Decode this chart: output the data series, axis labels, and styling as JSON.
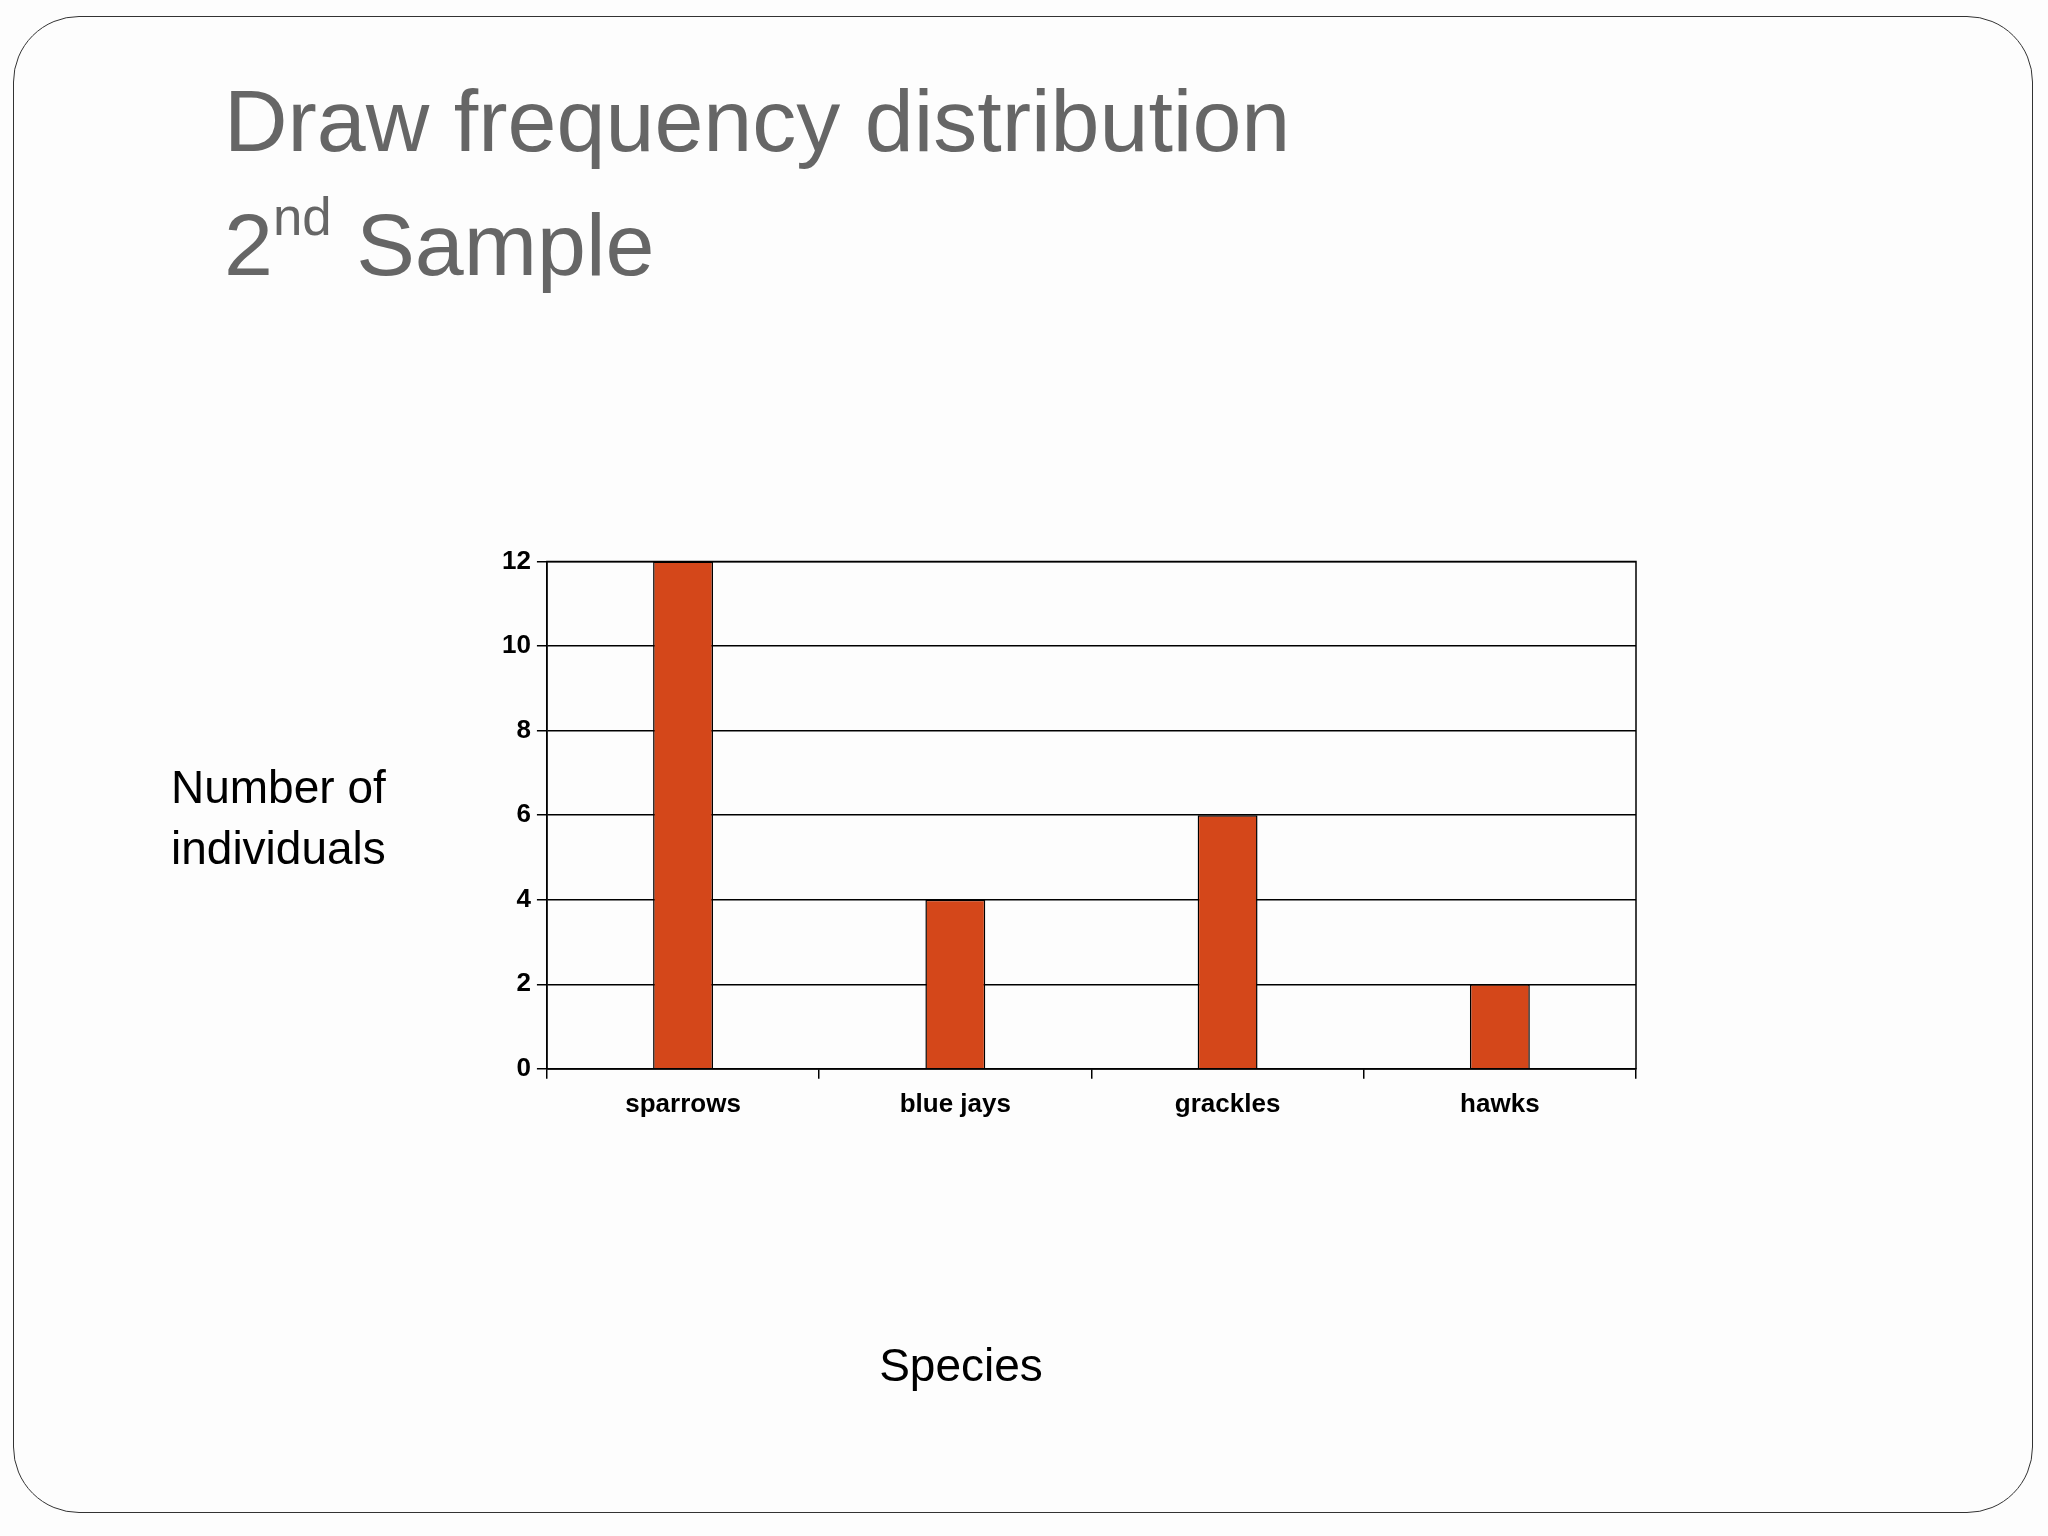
{
  "chart_data": {
    "type": "bar",
    "title": "Draw frequency distribution",
    "subtitle": "2$^{nd}$ Sample",
    "xlabel": "Species",
    "ylabel": "Number of individuals",
    "categories": [
      "sparrows",
      "blue jays",
      "grackles",
      "hawks"
    ],
    "values": [
      12,
      4,
      6,
      2
    ],
    "color": "#d4471a",
    "ylim": [
      0,
      12
    ],
    "yticks": [
      0,
      2,
      4,
      6,
      8,
      10,
      12
    ],
    "grid": "y"
  }
}
